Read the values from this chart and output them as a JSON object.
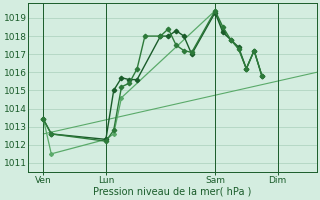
{
  "bg_color": "#d4ede0",
  "grid_color": "#aacfbc",
  "line_color_dark": "#1a5c2a",
  "line_color_mid": "#2d7a3a",
  "line_color_light": "#5aaa6a",
  "xlabel": "Pression niveau de la mer( hPa )",
  "ylim": [
    1010.5,
    1019.8
  ],
  "yticks": [
    1011,
    1012,
    1013,
    1014,
    1015,
    1016,
    1017,
    1018,
    1019
  ],
  "xtick_labels": [
    "Ven",
    "Lun",
    "Sam",
    "Dim"
  ],
  "xtick_positions": [
    2,
    10,
    24,
    32
  ],
  "xvlines": [
    2,
    10,
    24,
    32
  ],
  "xlim": [
    0,
    37
  ],
  "series_trend": {
    "x": [
      2,
      37
    ],
    "y": [
      1012.6,
      1016.0
    ]
  },
  "series1": {
    "x": [
      2,
      3,
      10,
      11,
      12,
      13,
      14,
      17,
      18,
      19,
      20,
      21,
      24,
      25,
      26,
      27,
      28,
      29,
      30
    ],
    "y": [
      1013.4,
      1012.6,
      1012.3,
      1015.0,
      1015.7,
      1015.6,
      1015.6,
      1018.0,
      1018.0,
      1018.3,
      1018.0,
      1017.0,
      1019.3,
      1018.2,
      1017.8,
      1017.4,
      1016.2,
      1017.2,
      1015.8
    ]
  },
  "series2": {
    "x": [
      2,
      3,
      10,
      11,
      12,
      13,
      14,
      15,
      17,
      18,
      19,
      20,
      21,
      24,
      25,
      26,
      27,
      28,
      29,
      30
    ],
    "y": [
      1013.4,
      1012.6,
      1012.2,
      1012.8,
      1015.2,
      1015.4,
      1016.2,
      1018.0,
      1018.0,
      1018.4,
      1017.5,
      1017.2,
      1017.1,
      1019.4,
      1018.5,
      1017.8,
      1017.3,
      1016.2,
      1017.2,
      1015.8
    ]
  },
  "series3": {
    "x": [
      2,
      3,
      10,
      11,
      12,
      24,
      25,
      26,
      27,
      28,
      29,
      30
    ],
    "y": [
      1013.4,
      1011.5,
      1012.3,
      1012.6,
      1014.6,
      1019.4,
      1018.3,
      1017.8,
      1017.3,
      1016.2,
      1017.2,
      1015.8
    ]
  }
}
